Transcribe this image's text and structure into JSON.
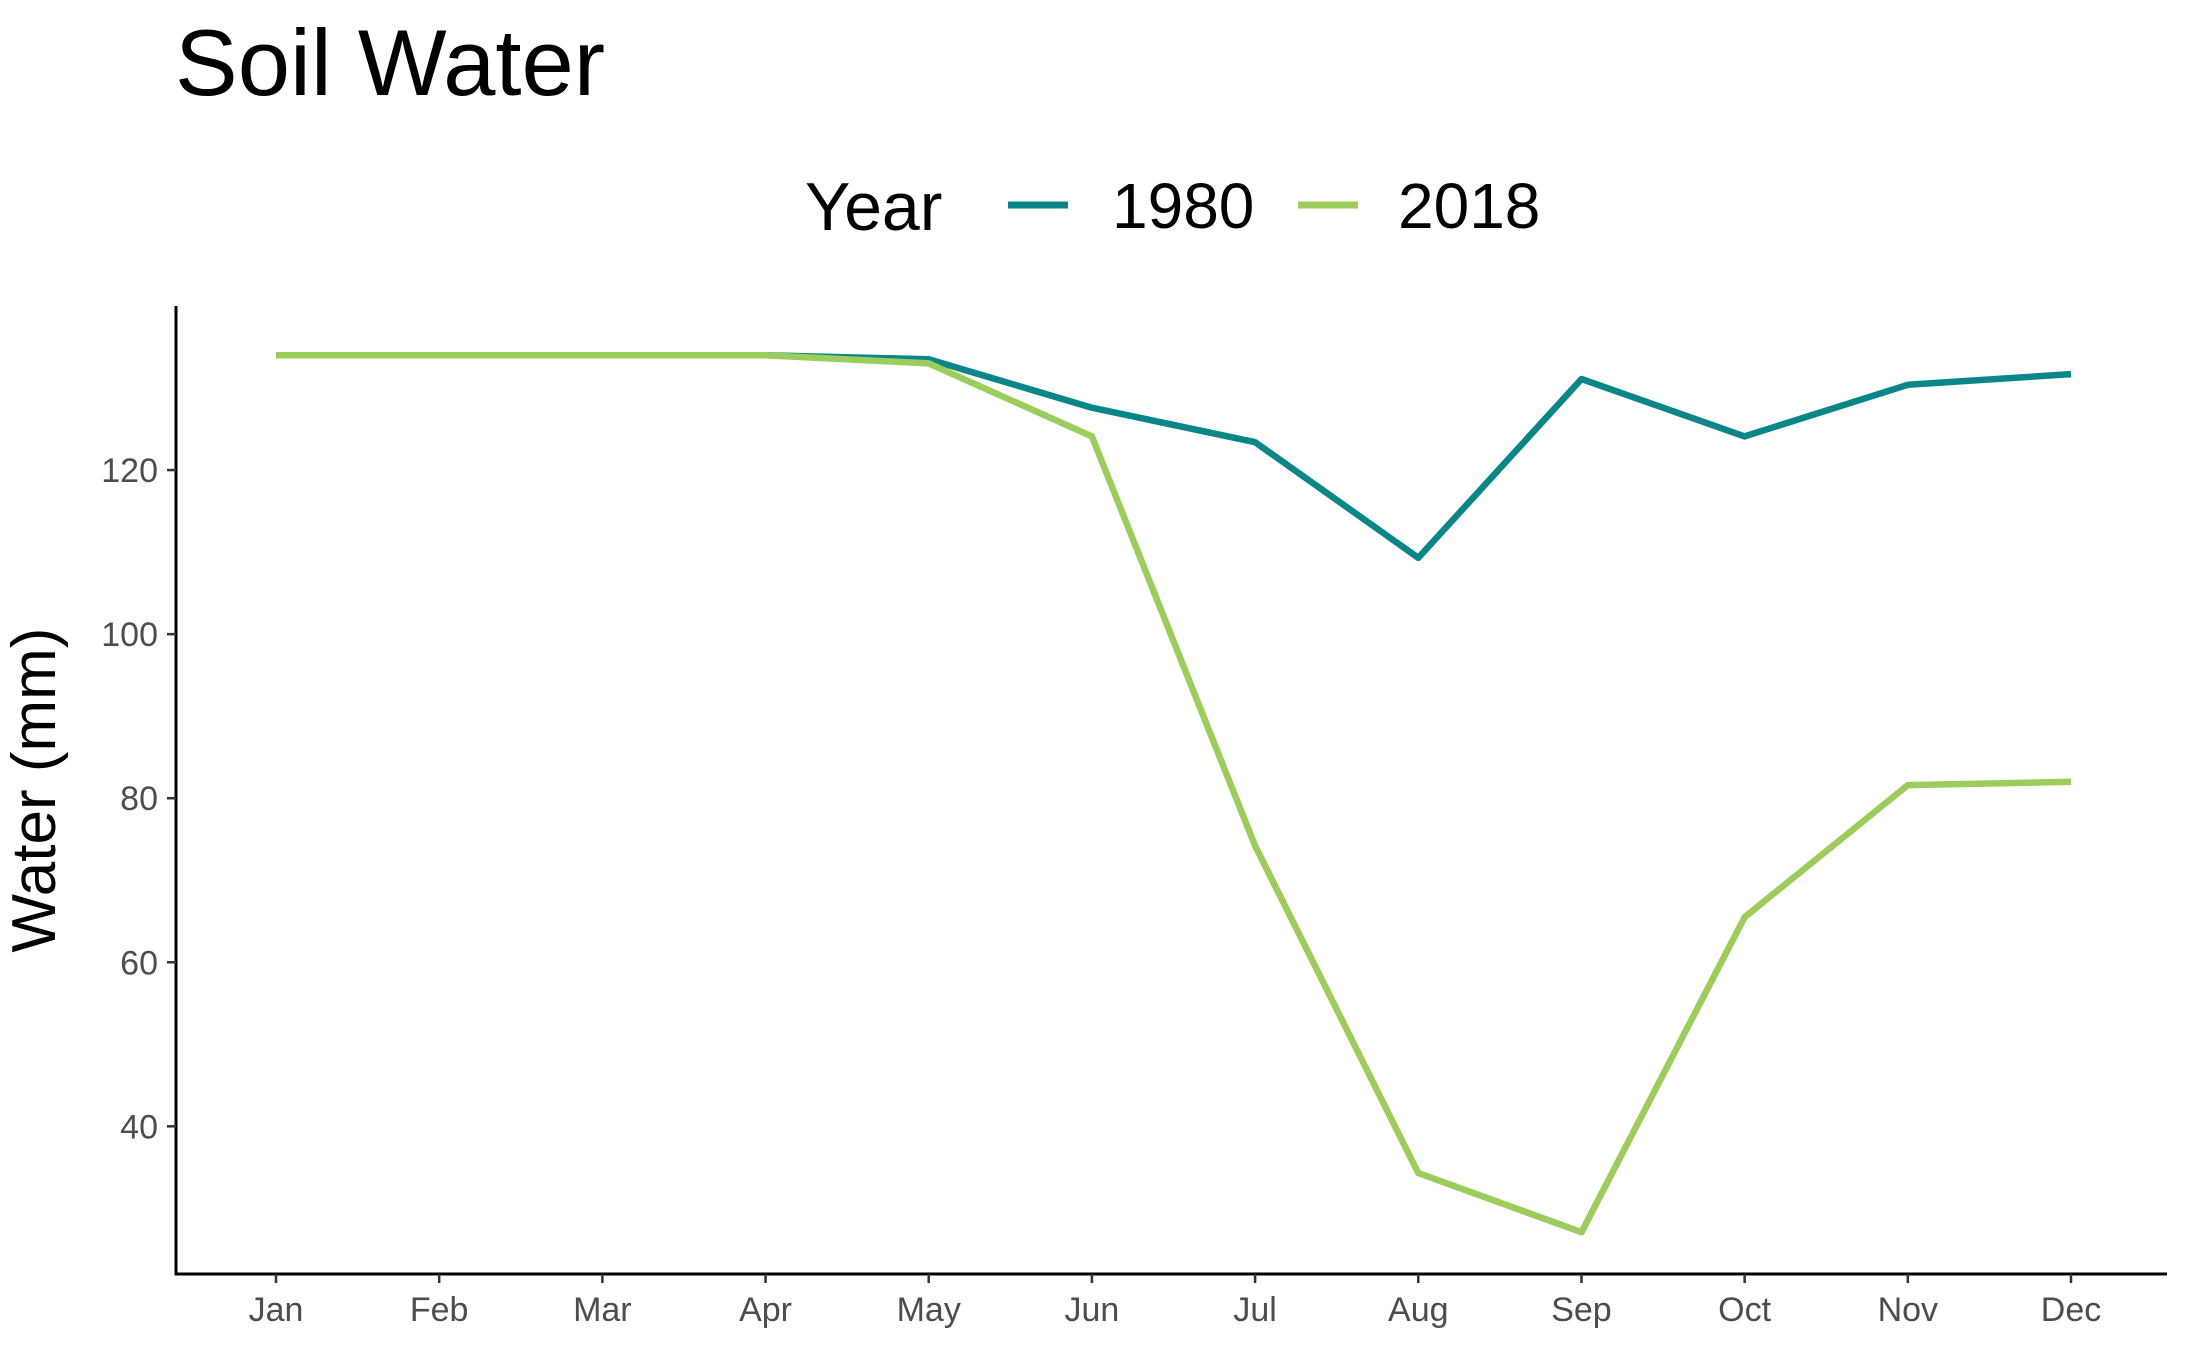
{
  "chart_data": {
    "type": "line",
    "title": "Soil Water",
    "xlabel": "",
    "ylabel": "Water (mm)",
    "categories": [
      "Jan",
      "Feb",
      "Mar",
      "Apr",
      "May",
      "Jun",
      "Jul",
      "Aug",
      "Sep",
      "Oct",
      "Nov",
      "Dec"
    ],
    "ylim": [
      22,
      140
    ],
    "yticks": [
      40,
      60,
      80,
      100,
      120
    ],
    "grid": false,
    "legend": {
      "title": "Year",
      "position": "top"
    },
    "series": [
      {
        "name": "1980",
        "color": "#0b8688",
        "values": [
          134,
          134,
          134,
          134,
          133.5,
          127.6,
          123.4,
          109.3,
          131.1,
          124.1,
          130.4,
          131.7
        ]
      },
      {
        "name": "2018",
        "color": "#9ccc5c",
        "values": [
          134,
          134,
          134,
          134,
          133,
          124.1,
          74.2,
          34.3,
          27.1,
          65.5,
          81.6,
          82
        ]
      }
    ]
  }
}
